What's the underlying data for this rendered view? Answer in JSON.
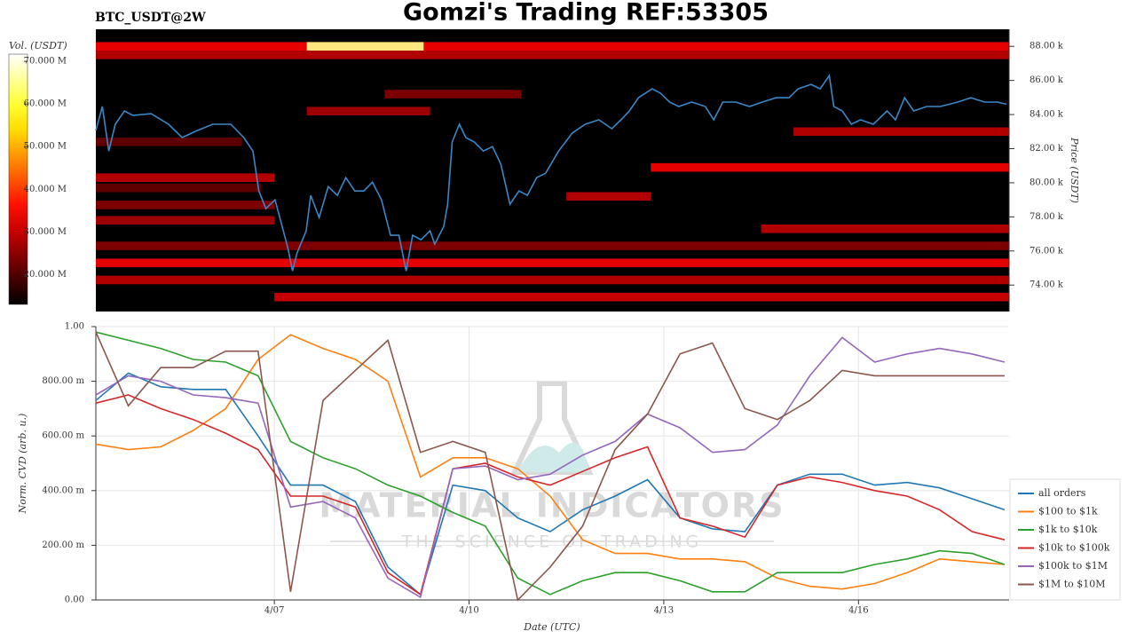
{
  "chart_data": [
    {
      "type": "heatmap",
      "title": "Gomzi's Trading REF:53305",
      "subtitle": "BTC_USDT@2W",
      "ylabel": "Price (USDT)",
      "colorbar_label": "Vol. (USDT)",
      "colormap": "hot",
      "xlim": [
        4.25,
        18.32
      ],
      "ylim": [
        72450,
        89000
      ],
      "yticks": [
        {
          "value": 74000,
          "label": "74.00 k"
        },
        {
          "value": 76000,
          "label": "76.00 k"
        },
        {
          "value": 78000,
          "label": "78.00 k"
        },
        {
          "value": 80000,
          "label": "80.00 k"
        },
        {
          "value": 82000,
          "label": "82.00 k"
        },
        {
          "value": 84000,
          "label": "84.00 k"
        },
        {
          "value": 86000,
          "label": "86.00 k"
        },
        {
          "value": 88000,
          "label": "88.00 k"
        }
      ],
      "clim": [
        13000000,
        71700000
      ],
      "cticks": [
        {
          "value": 20000000,
          "label": "20.000 M"
        },
        {
          "value": 30000000,
          "label": "30.000 M"
        },
        {
          "value": 40000000,
          "label": "40.000 M"
        },
        {
          "value": 50000000,
          "label": "50.000 M"
        },
        {
          "value": 60000000,
          "label": "60.000 M"
        },
        {
          "value": 70000000,
          "label": "70.000 M"
        }
      ],
      "price_step": 500,
      "cells": [
        {
          "price": 88000,
          "start": 4.25,
          "end": 18.32,
          "volume": 35000000
        },
        {
          "price": 87500,
          "start": 4.25,
          "end": 18.32,
          "volume": 30000000
        },
        {
          "price": 88000,
          "start": 7.5,
          "end": 9.3,
          "volume": 65000000
        },
        {
          "price": 85200,
          "start": 8.7,
          "end": 10.8,
          "volume": 25000000
        },
        {
          "price": 84200,
          "start": 7.5,
          "end": 9.4,
          "volume": 28000000
        },
        {
          "price": 83000,
          "start": 15.0,
          "end": 18.32,
          "volume": 30000000
        },
        {
          "price": 82400,
          "start": 4.25,
          "end": 6.5,
          "volume": 22000000
        },
        {
          "price": 80900,
          "start": 12.8,
          "end": 18.32,
          "volume": 35000000
        },
        {
          "price": 80300,
          "start": 4.25,
          "end": 7.0,
          "volume": 30000000
        },
        {
          "price": 79700,
          "start": 4.25,
          "end": 6.8,
          "volume": 22000000
        },
        {
          "price": 79200,
          "start": 11.5,
          "end": 12.8,
          "volume": 30000000
        },
        {
          "price": 78700,
          "start": 4.25,
          "end": 7.0,
          "volume": 25000000
        },
        {
          "price": 77800,
          "start": 4.25,
          "end": 7.0,
          "volume": 28000000
        },
        {
          "price": 77300,
          "start": 14.5,
          "end": 18.32,
          "volume": 30000000
        },
        {
          "price": 76300,
          "start": 4.25,
          "end": 18.32,
          "volume": 25000000
        },
        {
          "price": 75300,
          "start": 4.25,
          "end": 18.32,
          "volume": 35000000
        },
        {
          "price": 74300,
          "start": 4.25,
          "end": 18.32,
          "volume": 30000000
        },
        {
          "price": 73300,
          "start": 7.0,
          "end": 18.32,
          "volume": 32000000
        }
      ],
      "line": {
        "color": "#3a87c7",
        "x": [
          4.25,
          4.35,
          4.45,
          4.55,
          4.69,
          4.82,
          5.1,
          5.37,
          5.58,
          5.78,
          6.05,
          6.33,
          6.53,
          6.67,
          6.76,
          6.87,
          7.01,
          7.12,
          7.21,
          7.28,
          7.35,
          7.49,
          7.56,
          7.69,
          7.83,
          7.97,
          8.1,
          8.24,
          8.38,
          8.51,
          8.65,
          8.79,
          8.92,
          9.03,
          9.13,
          9.26,
          9.4,
          9.47,
          9.61,
          9.67,
          9.74,
          9.85,
          9.95,
          10.08,
          10.22,
          10.36,
          10.49,
          10.63,
          10.77,
          10.9,
          11.04,
          11.18,
          11.38,
          11.59,
          11.79,
          12.0,
          12.2,
          12.34,
          12.47,
          12.61,
          12.82,
          12.95,
          13.09,
          13.23,
          13.43,
          13.64,
          13.77,
          13.91,
          14.11,
          14.32,
          14.52,
          14.73,
          14.93,
          15.07,
          15.27,
          15.41,
          15.55,
          15.62,
          15.75,
          15.89,
          16.03,
          16.23,
          16.44,
          16.57,
          16.71,
          16.85,
          17.05,
          17.26,
          17.53,
          17.73,
          17.94,
          18.14,
          18.28
        ],
        "values": [
          83060,
          84470,
          81860,
          83430,
          84210,
          83950,
          84050,
          83430,
          82650,
          83010,
          83430,
          83430,
          82650,
          81860,
          79520,
          78480,
          79000,
          77440,
          76140,
          74830,
          75880,
          77180,
          79260,
          77960,
          79780,
          79260,
          80300,
          79520,
          79520,
          80040,
          79000,
          76920,
          76920,
          74830,
          76920,
          76660,
          77180,
          76400,
          77440,
          78740,
          82390,
          83430,
          82650,
          82390,
          81860,
          82120,
          81080,
          78740,
          79520,
          79260,
          80300,
          80560,
          81860,
          82910,
          83430,
          83690,
          83170,
          83690,
          84210,
          84990,
          85510,
          85250,
          84730,
          84470,
          84730,
          84470,
          83690,
          84730,
          84730,
          84470,
          84730,
          84990,
          84990,
          85510,
          85770,
          85510,
          86290,
          84470,
          84210,
          83430,
          83690,
          83430,
          84210,
          83690,
          84990,
          84210,
          84470,
          84470,
          84730,
          84990,
          84730,
          84730,
          84600
        ]
      }
    },
    {
      "type": "line",
      "xlabel": "Date (UTC)",
      "ylabel": "Norm. CVD (arb. u.)",
      "grid": true,
      "legend": "right",
      "watermark": [
        "MATERIAL INDICATORS",
        "THE SCIENCE OF TRADING"
      ],
      "xlim": [
        4.25,
        18.32
      ],
      "ylim": [
        0,
        1
      ],
      "xticks": [
        {
          "value": 7,
          "label": "4/07"
        },
        {
          "value": 10,
          "label": "4/10"
        },
        {
          "value": 13,
          "label": "4/13"
        },
        {
          "value": 16,
          "label": "4/16"
        }
      ],
      "yticks": [
        {
          "value": 0,
          "label": "0.00"
        },
        {
          "value": 0.2,
          "label": "200.00 m"
        },
        {
          "value": 0.4,
          "label": "400.00 m"
        },
        {
          "value": 0.6,
          "label": "600.00 m"
        },
        {
          "value": 0.8,
          "label": "800.00 m"
        },
        {
          "value": 1,
          "label": "1.00"
        }
      ],
      "x": [
        4.25,
        4.75,
        5.25,
        5.75,
        6.25,
        6.75,
        7.25,
        7.75,
        8.25,
        8.75,
        9.25,
        9.75,
        10.25,
        10.75,
        11.25,
        11.75,
        12.25,
        12.75,
        13.25,
        13.75,
        14.25,
        14.75,
        15.25,
        15.75,
        16.25,
        16.75,
        17.25,
        17.75,
        18.25
      ],
      "series": [
        {
          "name": "all orders",
          "color": "#1f77b4",
          "values": [
            0.73,
            0.83,
            0.78,
            0.77,
            0.77,
            0.6,
            0.42,
            0.42,
            0.36,
            0.12,
            0.02,
            0.42,
            0.4,
            0.3,
            0.25,
            0.33,
            0.38,
            0.44,
            0.3,
            0.26,
            0.25,
            0.42,
            0.46,
            0.46,
            0.42,
            0.43,
            0.41,
            0.37,
            0.33
          ]
        },
        {
          "name": "$100 to $1k",
          "color": "#ff7f0e",
          "values": [
            0.57,
            0.55,
            0.56,
            0.62,
            0.7,
            0.88,
            0.97,
            0.92,
            0.88,
            0.8,
            0.45,
            0.52,
            0.52,
            0.48,
            0.38,
            0.22,
            0.17,
            0.17,
            0.15,
            0.15,
            0.14,
            0.08,
            0.05,
            0.04,
            0.06,
            0.1,
            0.15,
            0.14,
            0.13
          ]
        },
        {
          "name": "$1k to $10k",
          "color": "#2ca02c",
          "values": [
            0.98,
            0.95,
            0.92,
            0.88,
            0.87,
            0.82,
            0.58,
            0.52,
            0.48,
            0.42,
            0.38,
            0.32,
            0.27,
            0.08,
            0.02,
            0.07,
            0.1,
            0.1,
            0.07,
            0.03,
            0.03,
            0.1,
            0.1,
            0.1,
            0.13,
            0.15,
            0.18,
            0.17,
            0.13
          ]
        },
        {
          "name": "$10k to $100k",
          "color": "#d62728",
          "values": [
            0.72,
            0.75,
            0.7,
            0.66,
            0.61,
            0.55,
            0.38,
            0.38,
            0.34,
            0.1,
            0.02,
            0.48,
            0.5,
            0.45,
            0.42,
            0.47,
            0.52,
            0.56,
            0.3,
            0.27,
            0.23,
            0.42,
            0.45,
            0.43,
            0.4,
            0.38,
            0.33,
            0.25,
            0.22
          ]
        },
        {
          "name": "$100k to $1M",
          "color": "#9467bd",
          "values": [
            0.75,
            0.82,
            0.8,
            0.75,
            0.74,
            0.72,
            0.34,
            0.36,
            0.3,
            0.08,
            0.01,
            0.48,
            0.49,
            0.44,
            0.46,
            0.53,
            0.58,
            0.68,
            0.63,
            0.54,
            0.55,
            0.64,
            0.82,
            0.96,
            0.87,
            0.9,
            0.92,
            0.9,
            0.87
          ]
        },
        {
          "name": "$1M to $10M",
          "color": "#8c564b",
          "values": [
            0.98,
            0.71,
            0.85,
            0.85,
            0.91,
            0.91,
            0.03,
            0.73,
            0.84,
            0.95,
            0.54,
            0.58,
            0.54,
            0.0,
            0.12,
            0.27,
            0.55,
            0.68,
            0.9,
            0.94,
            0.7,
            0.66,
            0.73,
            0.84,
            0.82,
            0.82,
            0.82,
            0.82,
            0.82
          ]
        }
      ]
    }
  ]
}
